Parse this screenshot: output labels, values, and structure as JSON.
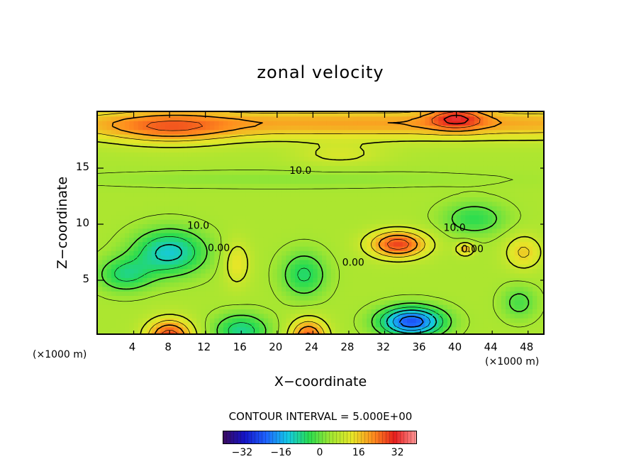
{
  "chart_data": {
    "type": "heatmap",
    "title": "zonal velocity",
    "xlabel": "X−coordinate",
    "ylabel": "Z−coordinate",
    "x_unit_left": "(×1000 m)",
    "x_unit_right": "(×1000 m)",
    "xlim": [
      0,
      50
    ],
    "ylim": [
      0,
      20
    ],
    "x_ticks": [
      4,
      8,
      12,
      16,
      20,
      24,
      28,
      32,
      36,
      40,
      44,
      48
    ],
    "y_ticks": [
      5,
      10,
      15
    ],
    "contour_interval_text": "CONTOUR INTERVAL = 5.000E+00",
    "contour_labels": [
      {
        "text": "10.0",
        "x": 22.6,
        "y": 14.5
      },
      {
        "text": "10.0",
        "x": 11.2,
        "y": 9.6
      },
      {
        "text": "0.00",
        "x": 13.5,
        "y": 7.6
      },
      {
        "text": "0.00",
        "x": 28.5,
        "y": 6.3
      },
      {
        "text": "10.0",
        "x": 39.8,
        "y": 9.4
      },
      {
        "text": "0.00",
        "x": 41.8,
        "y": 7.5
      }
    ],
    "colorbar": {
      "range": [
        -40,
        40
      ],
      "ticks": [
        -32,
        -16,
        0,
        16,
        32
      ],
      "colors": [
        "#3a0a5e",
        "#1414c8",
        "#1e64ff",
        "#14c8e6",
        "#28dc50",
        "#a0e632",
        "#e6e628",
        "#ff8c1e",
        "#e61e1e",
        "#ff9696"
      ]
    },
    "field": {
      "background": 6,
      "features": [
        {
          "x": 33,
          "y": 19,
          "sx": 55,
          "sy": 1.4,
          "amp": 14
        },
        {
          "x": 8,
          "y": 18.5,
          "sx": 7,
          "sy": 1.5,
          "amp": 10
        },
        {
          "x": 40,
          "y": 19.5,
          "sx": 3,
          "sy": 1.0,
          "amp": 14
        },
        {
          "x": 27,
          "y": 16.2,
          "sx": 5,
          "sy": 1.0,
          "amp": 5
        },
        {
          "x": 20,
          "y": 14.0,
          "sx": 25,
          "sy": 0.8,
          "amp": -3
        },
        {
          "x": 8,
          "y": 7.5,
          "sx": 4,
          "sy": 2.0,
          "amp": -18
        },
        {
          "x": 3,
          "y": 5.5,
          "sx": 3,
          "sy": 1.5,
          "amp": -12
        },
        {
          "x": 33.5,
          "y": 8.2,
          "sx": 3.2,
          "sy": 1.2,
          "amp": 22
        },
        {
          "x": 35,
          "y": 1.3,
          "sx": 3.5,
          "sy": 1.3,
          "amp": -30
        },
        {
          "x": 8,
          "y": 0,
          "sx": 2.5,
          "sy": 1.5,
          "amp": 22
        },
        {
          "x": 23.5,
          "y": 0,
          "sx": 2,
          "sy": 1.5,
          "amp": 20
        },
        {
          "x": 16,
          "y": 0.5,
          "sx": 3,
          "sy": 1.5,
          "amp": -14
        },
        {
          "x": 23,
          "y": 5.5,
          "sx": 2.5,
          "sy": 2.0,
          "amp": -12
        },
        {
          "x": 42,
          "y": 10.5,
          "sx": 3.5,
          "sy": 1.5,
          "amp": -10
        },
        {
          "x": 47,
          "y": 3.0,
          "sx": 2,
          "sy": 1.5,
          "amp": -8
        },
        {
          "x": 15.5,
          "y": 6.5,
          "sx": 1.5,
          "sy": 2,
          "amp": 8
        },
        {
          "x": 47.5,
          "y": 7.5,
          "sx": 2,
          "sy": 1.5,
          "amp": 10
        },
        {
          "x": 41,
          "y": 7.8,
          "sx": 1,
          "sy": 0.6,
          "amp": 12
        }
      ]
    }
  }
}
